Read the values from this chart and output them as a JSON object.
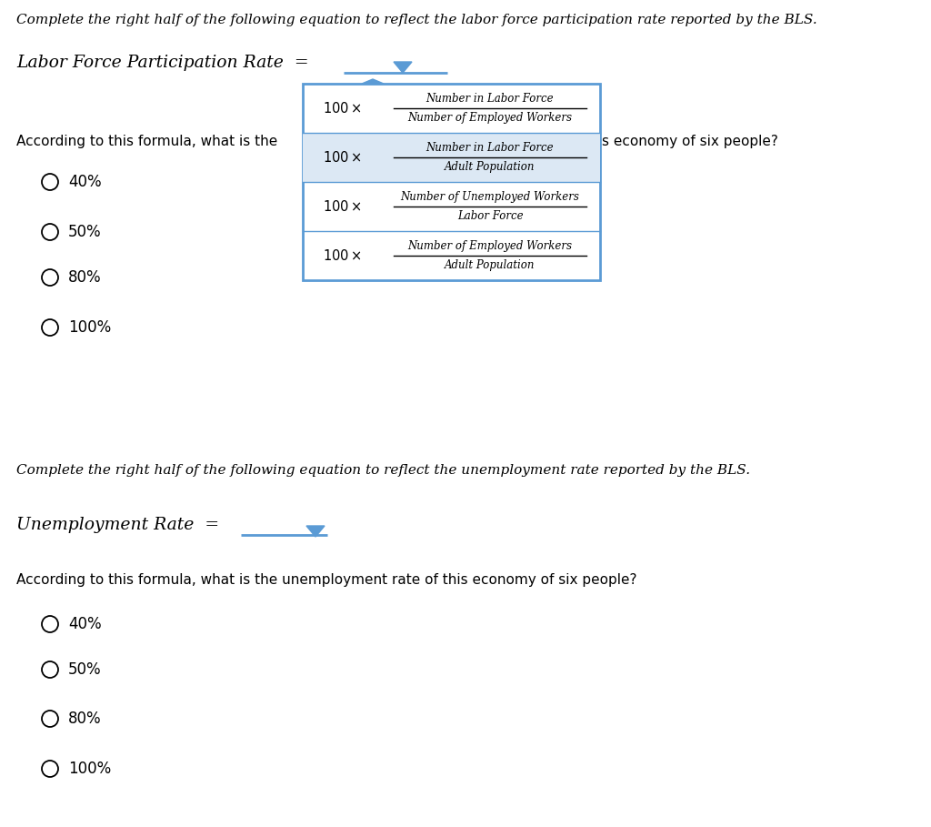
{
  "bg_color": "#ffffff",
  "text_color": "#000000",
  "dropdown_border_color": "#5b9bd5",
  "dropdown_highlight_color": "#dce8f4",
  "arrow_color": "#5b9bd5",
  "line_color": "#5b9bd5",
  "section1_instruction": "Complete the right half of the following equation to reflect the labor force participation rate reported by the BLS.",
  "section1_label": "Labor Force Participation Rate  =",
  "section1_question_left": "According to this formula, what is the",
  "section1_question_right": "s economy of six people?",
  "section1_choices": [
    "40%",
    "50%",
    "80%",
    "100%"
  ],
  "dropdown1_options": [
    {
      "numerator": "Number in Labor Force",
      "denominator": "Number of Employed Workers"
    },
    {
      "numerator": "Number in Labor Force",
      "denominator": "Adult Population"
    },
    {
      "numerator": "Number of Unemployed Workers",
      "denominator": "Labor Force"
    },
    {
      "numerator": "Number of Employed Workers",
      "denominator": "Adult Population"
    }
  ],
  "section2_instruction": "Complete the right half of the following equation to reflect the unemployment rate reported by the BLS.",
  "section2_label": "Unemployment Rate  =",
  "section2_choices": [
    "40%",
    "50%",
    "80%",
    "100%"
  ],
  "section2_question": "According to this formula, what is the unemployment rate of this economy of six people?"
}
